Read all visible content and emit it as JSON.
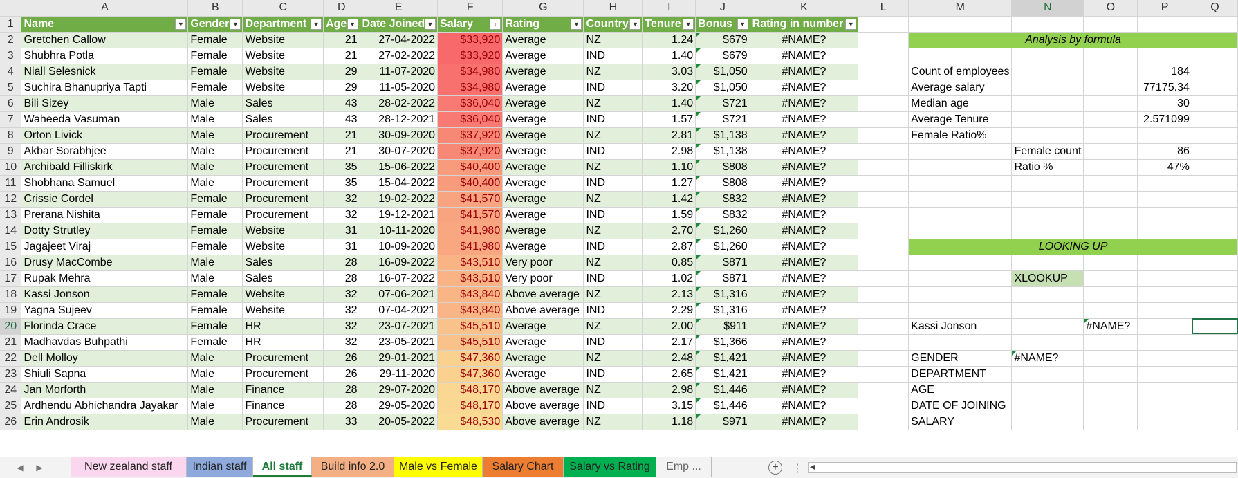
{
  "columns": [
    "A",
    "B",
    "C",
    "D",
    "E",
    "F",
    "G",
    "H",
    "I",
    "J",
    "K",
    "L",
    "M",
    "N",
    "O",
    "P",
    "Q"
  ],
  "active_column": "N",
  "active_row": 20,
  "headers": [
    "Name",
    "Gender",
    "Department",
    "Age",
    "Date Joined",
    "Salary",
    "Rating",
    "Country",
    "Tenure",
    "Bonus",
    "Rating in number"
  ],
  "rows": [
    {
      "n": 2,
      "name": "Gretchen Callow",
      "gender": "Female",
      "dept": "Website",
      "age": "21",
      "date": "27-04-2022",
      "salary": "$33,920",
      "rating": "Average",
      "country": "NZ",
      "tenure": "1.24",
      "bonus": "$679",
      "rnum": "#NAME?"
    },
    {
      "n": 3,
      "name": "Shubhra Potla",
      "gender": "Female",
      "dept": "Website",
      "age": "21",
      "date": "27-02-2022",
      "salary": "$33,920",
      "rating": "Average",
      "country": "IND",
      "tenure": "1.40",
      "bonus": "$679",
      "rnum": "#NAME?"
    },
    {
      "n": 4,
      "name": "Niall Selesnick",
      "gender": "Female",
      "dept": "Website",
      "age": "29",
      "date": "11-07-2020",
      "salary": "$34,980",
      "rating": "Average",
      "country": "NZ",
      "tenure": "3.03",
      "bonus": "$1,050",
      "rnum": "#NAME?"
    },
    {
      "n": 5,
      "name": "Suchira Bhanupriya Tapti",
      "gender": "Female",
      "dept": "Website",
      "age": "29",
      "date": "11-05-2020",
      "salary": "$34,980",
      "rating": "Average",
      "country": "IND",
      "tenure": "3.20",
      "bonus": "$1,050",
      "rnum": "#NAME?"
    },
    {
      "n": 6,
      "name": "Bili Sizey",
      "gender": "Male",
      "dept": "Sales",
      "age": "43",
      "date": "28-02-2022",
      "salary": "$36,040",
      "rating": "Average",
      "country": "NZ",
      "tenure": "1.40",
      "bonus": "$721",
      "rnum": "#NAME?"
    },
    {
      "n": 7,
      "name": "Waheeda Vasuman",
      "gender": "Male",
      "dept": "Sales",
      "age": "43",
      "date": "28-12-2021",
      "salary": "$36,040",
      "rating": "Average",
      "country": "IND",
      "tenure": "1.57",
      "bonus": "$721",
      "rnum": "#NAME?"
    },
    {
      "n": 8,
      "name": "Orton Livick",
      "gender": "Male",
      "dept": "Procurement",
      "age": "21",
      "date": "30-09-2020",
      "salary": "$37,920",
      "rating": "Average",
      "country": "NZ",
      "tenure": "2.81",
      "bonus": "$1,138",
      "rnum": "#NAME?"
    },
    {
      "n": 9,
      "name": "Akbar Sorabhjee",
      "gender": "Male",
      "dept": "Procurement",
      "age": "21",
      "date": "30-07-2020",
      "salary": "$37,920",
      "rating": "Average",
      "country": "IND",
      "tenure": "2.98",
      "bonus": "$1,138",
      "rnum": "#NAME?"
    },
    {
      "n": 10,
      "name": "Archibald Filliskirk",
      "gender": "Male",
      "dept": "Procurement",
      "age": "35",
      "date": "15-06-2022",
      "salary": "$40,400",
      "rating": "Average",
      "country": "NZ",
      "tenure": "1.10",
      "bonus": "$808",
      "rnum": "#NAME?"
    },
    {
      "n": 11,
      "name": "Shobhana Samuel",
      "gender": "Male",
      "dept": "Procurement",
      "age": "35",
      "date": "15-04-2022",
      "salary": "$40,400",
      "rating": "Average",
      "country": "IND",
      "tenure": "1.27",
      "bonus": "$808",
      "rnum": "#NAME?"
    },
    {
      "n": 12,
      "name": "Crissie Cordel",
      "gender": "Female",
      "dept": "Procurement",
      "age": "32",
      "date": "19-02-2022",
      "salary": "$41,570",
      "rating": "Average",
      "country": "NZ",
      "tenure": "1.42",
      "bonus": "$832",
      "rnum": "#NAME?"
    },
    {
      "n": 13,
      "name": "Prerana Nishita",
      "gender": "Female",
      "dept": "Procurement",
      "age": "32",
      "date": "19-12-2021",
      "salary": "$41,570",
      "rating": "Average",
      "country": "IND",
      "tenure": "1.59",
      "bonus": "$832",
      "rnum": "#NAME?"
    },
    {
      "n": 14,
      "name": "Dotty Strutley",
      "gender": "Female",
      "dept": "Website",
      "age": "31",
      "date": "10-11-2020",
      "salary": "$41,980",
      "rating": "Average",
      "country": "NZ",
      "tenure": "2.70",
      "bonus": "$1,260",
      "rnum": "#NAME?"
    },
    {
      "n": 15,
      "name": "Jagajeet Viraj",
      "gender": "Female",
      "dept": "Website",
      "age": "31",
      "date": "10-09-2020",
      "salary": "$41,980",
      "rating": "Average",
      "country": "IND",
      "tenure": "2.87",
      "bonus": "$1,260",
      "rnum": "#NAME?"
    },
    {
      "n": 16,
      "name": "Drusy MacCombe",
      "gender": "Male",
      "dept": "Sales",
      "age": "28",
      "date": "16-09-2022",
      "salary": "$43,510",
      "rating": "Very poor",
      "country": "NZ",
      "tenure": "0.85",
      "bonus": "$871",
      "rnum": "#NAME?"
    },
    {
      "n": 17,
      "name": "Rupak Mehra",
      "gender": "Male",
      "dept": "Sales",
      "age": "28",
      "date": "16-07-2022",
      "salary": "$43,510",
      "rating": "Very poor",
      "country": "IND",
      "tenure": "1.02",
      "bonus": "$871",
      "rnum": "#NAME?"
    },
    {
      "n": 18,
      "name": "Kassi Jonson",
      "gender": "Female",
      "dept": "Website",
      "age": "32",
      "date": "07-06-2021",
      "salary": "$43,840",
      "rating": "Above average",
      "country": "NZ",
      "tenure": "2.13",
      "bonus": "$1,316",
      "rnum": "#NAME?"
    },
    {
      "n": 19,
      "name": "Yagna Sujeev",
      "gender": "Female",
      "dept": "Website",
      "age": "32",
      "date": "07-04-2021",
      "salary": "$43,840",
      "rating": "Above average",
      "country": "IND",
      "tenure": "2.29",
      "bonus": "$1,316",
      "rnum": "#NAME?"
    },
    {
      "n": 20,
      "name": "Florinda Crace",
      "gender": "Female",
      "dept": "HR",
      "age": "32",
      "date": "23-07-2021",
      "salary": "$45,510",
      "rating": "Average",
      "country": "NZ",
      "tenure": "2.00",
      "bonus": "$911",
      "rnum": "#NAME?"
    },
    {
      "n": 21,
      "name": "Madhavdas Buhpathi",
      "gender": "Female",
      "dept": "HR",
      "age": "32",
      "date": "23-05-2021",
      "salary": "$45,510",
      "rating": "Average",
      "country": "IND",
      "tenure": "2.17",
      "bonus": "$1,366",
      "rnum": "#NAME?"
    },
    {
      "n": 22,
      "name": "Dell Molloy",
      "gender": "Male",
      "dept": "Procurement",
      "age": "26",
      "date": "29-01-2021",
      "salary": "$47,360",
      "rating": "Average",
      "country": "NZ",
      "tenure": "2.48",
      "bonus": "$1,421",
      "rnum": "#NAME?"
    },
    {
      "n": 23,
      "name": "Shiuli Sapna",
      "gender": "Male",
      "dept": "Procurement",
      "age": "26",
      "date": "29-11-2020",
      "salary": "$47,360",
      "rating": "Average",
      "country": "IND",
      "tenure": "2.65",
      "bonus": "$1,421",
      "rnum": "#NAME?"
    },
    {
      "n": 24,
      "name": "Jan Morforth",
      "gender": "Male",
      "dept": "Finance",
      "age": "28",
      "date": "29-07-2020",
      "salary": "$48,170",
      "rating": "Above average",
      "country": "NZ",
      "tenure": "2.98",
      "bonus": "$1,446",
      "rnum": "#NAME?"
    },
    {
      "n": 25,
      "name": "Ardhendu Abhichandra Jayakar",
      "gender": "Male",
      "dept": "Finance",
      "age": "28",
      "date": "29-05-2020",
      "salary": "$48,170",
      "rating": "Above average",
      "country": "IND",
      "tenure": "3.15",
      "bonus": "$1,446",
      "rnum": "#NAME?"
    },
    {
      "n": 26,
      "name": "Erin Androsik",
      "gender": "Male",
      "dept": "Procurement",
      "age": "33",
      "date": "20-05-2022",
      "salary": "$48,530",
      "rating": "Above average",
      "country": "NZ",
      "tenure": "1.18",
      "bonus": "$971",
      "rnum": "#NAME?"
    }
  ],
  "salary_heat": [
    "#f8696b",
    "#f8696b",
    "#f8716e",
    "#f8716e",
    "#f87a72",
    "#f87a72",
    "#f88876",
    "#f88876",
    "#f89b7c",
    "#f89b7c",
    "#f9a480",
    "#f9a480",
    "#f9a781",
    "#f9a781",
    "#f9b385",
    "#f9b385",
    "#f9b586",
    "#f9b586",
    "#f9c28a",
    "#f9c28a",
    "#fad18f",
    "#fad18f",
    "#fad893",
    "#fad893",
    "#fadb94"
  ],
  "analysis": {
    "title": "Analysis by formula",
    "count_label": "Count of employees",
    "count_value": "184",
    "avg_salary_label": "Average salary",
    "avg_salary_value": "77175.34",
    "median_age_label": "Median age",
    "median_age_value": "30",
    "avg_tenure_label": "Average Tenure",
    "avg_tenure_value": "2.571099",
    "female_ratio_label": "Female Ratio%",
    "female_count_label": "Female count",
    "female_count_value": "86",
    "ratio_label": "Ratio %",
    "ratio_value": "47%"
  },
  "lookup": {
    "title": "LOOKING UP",
    "xlookup_label": "XLOOKUP",
    "lookup_name": "Kassi Jonson",
    "lookup_result": "#NAME?",
    "gender_label": "GENDER",
    "gender_result": "#NAME?",
    "department_label": "DEPARTMENT",
    "age_label": "AGE",
    "doj_label": "DATE OF JOINING",
    "salary_label": "SALARY"
  },
  "tabs": [
    {
      "label": "New zealand staff",
      "color": "#fad7ee"
    },
    {
      "label": "Indian staff",
      "color": "#8ea9db"
    },
    {
      "label": "All staff",
      "color": "#ffffff"
    },
    {
      "label": "Build info 2.0",
      "color": "#f4b084"
    },
    {
      "label": "Male vs Female",
      "color": "#ffff00"
    },
    {
      "label": "Salary Chart",
      "color": "#ed7d31"
    },
    {
      "label": "Salary vs Rating",
      "color": "#00b050"
    },
    {
      "label": "Emp ...",
      "color": "#f3f3f3"
    }
  ],
  "active_tab": "All staff",
  "icons": {
    "prev_sheet": "chevron-left-icon",
    "next_sheet": "chevron-right-icon",
    "add_sheet": "plus-circle-icon",
    "filter": "filter-dropdown-icon",
    "sort_desc": "sort-descending-icon"
  }
}
